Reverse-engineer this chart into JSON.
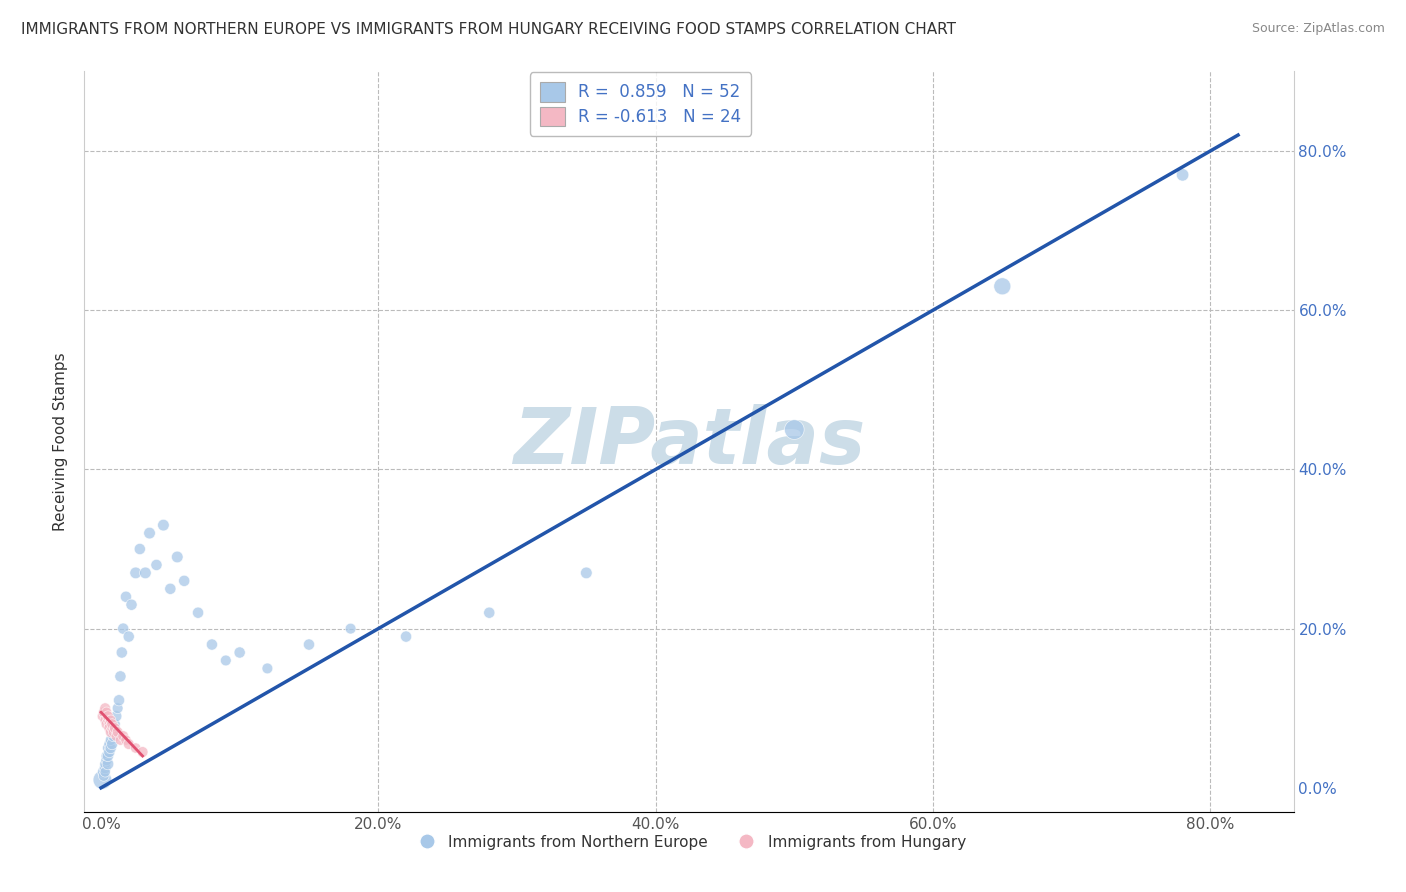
{
  "title": "IMMIGRANTS FROM NORTHERN EUROPE VS IMMIGRANTS FROM HUNGARY RECEIVING FOOD STAMPS CORRELATION CHART",
  "source": "Source: ZipAtlas.com",
  "ylabel": "Receiving Food Stamps",
  "xticklabels": [
    "0.0%",
    "20.0%",
    "40.0%",
    "60.0%",
    "80.0%"
  ],
  "yticklabels": [
    "0.0%",
    "20.0%",
    "40.0%",
    "60.0%",
    "80.0%"
  ],
  "xlim": [
    -0.012,
    0.86
  ],
  "ylim": [
    -0.03,
    0.9
  ],
  "R_blue": 0.859,
  "N_blue": 52,
  "R_pink": -0.613,
  "N_pink": 24,
  "blue_color": "#a8c8e8",
  "pink_color": "#f4b8c4",
  "blue_line_color": "#2255aa",
  "pink_line_color": "#e05070",
  "legend_box_blue": "#a8c8e8",
  "legend_box_pink": "#f4b8c4",
  "watermark": "ZIPatlas",
  "watermark_color": "#ccdde8",
  "blue_x": [
    0.001,
    0.002,
    0.002,
    0.003,
    0.003,
    0.003,
    0.004,
    0.004,
    0.005,
    0.005,
    0.005,
    0.006,
    0.006,
    0.007,
    0.007,
    0.008,
    0.008,
    0.009,
    0.009,
    0.01,
    0.01,
    0.011,
    0.012,
    0.013,
    0.014,
    0.015,
    0.016,
    0.018,
    0.02,
    0.022,
    0.025,
    0.028,
    0.032,
    0.035,
    0.04,
    0.045,
    0.05,
    0.055,
    0.06,
    0.07,
    0.08,
    0.09,
    0.1,
    0.12,
    0.15,
    0.18,
    0.22,
    0.28,
    0.35,
    0.5,
    0.65,
    0.78
  ],
  "blue_y": [
    0.01,
    0.02,
    0.015,
    0.025,
    0.03,
    0.02,
    0.035,
    0.04,
    0.03,
    0.04,
    0.05,
    0.045,
    0.055,
    0.05,
    0.06,
    0.055,
    0.07,
    0.065,
    0.075,
    0.07,
    0.08,
    0.09,
    0.1,
    0.11,
    0.14,
    0.17,
    0.2,
    0.24,
    0.19,
    0.23,
    0.27,
    0.3,
    0.27,
    0.32,
    0.28,
    0.33,
    0.25,
    0.29,
    0.26,
    0.22,
    0.18,
    0.16,
    0.17,
    0.15,
    0.18,
    0.2,
    0.19,
    0.22,
    0.27,
    0.45,
    0.63,
    0.77
  ],
  "blue_sizes": [
    180,
    80,
    60,
    70,
    60,
    55,
    65,
    60,
    70,
    65,
    60,
    65,
    60,
    65,
    60,
    65,
    60,
    65,
    60,
    65,
    60,
    65,
    60,
    65,
    65,
    65,
    65,
    65,
    65,
    65,
    70,
    65,
    70,
    70,
    65,
    70,
    65,
    70,
    65,
    65,
    65,
    60,
    65,
    60,
    65,
    60,
    65,
    65,
    70,
    200,
    150,
    80
  ],
  "pink_x": [
    0.001,
    0.002,
    0.003,
    0.003,
    0.004,
    0.004,
    0.005,
    0.005,
    0.006,
    0.006,
    0.007,
    0.007,
    0.008,
    0.008,
    0.009,
    0.01,
    0.011,
    0.012,
    0.014,
    0.016,
    0.018,
    0.02,
    0.025,
    0.03
  ],
  "pink_y": [
    0.09,
    0.095,
    0.085,
    0.1,
    0.095,
    0.08,
    0.085,
    0.09,
    0.08,
    0.075,
    0.085,
    0.07,
    0.075,
    0.08,
    0.07,
    0.075,
    0.065,
    0.07,
    0.06,
    0.065,
    0.06,
    0.055,
    0.05,
    0.045
  ],
  "pink_sizes": [
    55,
    60,
    55,
    60,
    55,
    60,
    55,
    60,
    55,
    60,
    55,
    60,
    55,
    60,
    55,
    60,
    55,
    60,
    55,
    60,
    55,
    60,
    55,
    60
  ],
  "blue_line_x": [
    0.0,
    0.82
  ],
  "blue_line_y": [
    0.0,
    0.82
  ],
  "pink_line_x": [
    0.0,
    0.03
  ],
  "pink_line_y": [
    0.095,
    0.04
  ]
}
